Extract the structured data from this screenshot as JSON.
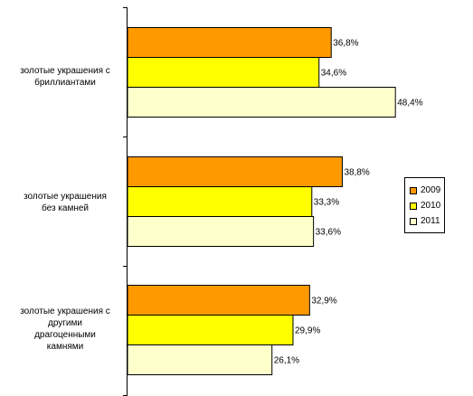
{
  "chart_data": {
    "type": "bar",
    "orientation": "horizontal",
    "categories": [
      "золотые украшения с\nбриллиантами",
      "золотые украшения\nбез камней",
      "золотые украшения с\nдругими\nдрагоценными\nкамнями"
    ],
    "series": [
      {
        "name": "2009",
        "values": [
          36.8,
          38.8,
          32.9
        ],
        "labels": [
          "36,8%",
          "38,8%",
          "32,9%"
        ],
        "color": "#FF9900"
      },
      {
        "name": "2010",
        "values": [
          34.6,
          33.3,
          29.9
        ],
        "labels": [
          "34,6%",
          "33,3%",
          "29,9%"
        ],
        "color": "#FFFF00"
      },
      {
        "name": "2011",
        "values": [
          48.4,
          33.6,
          26.1
        ],
        "labels": [
          "48,4%",
          "33,6%",
          "26,1%"
        ],
        "color": "#FFFFCC"
      }
    ],
    "xlim": [
      0,
      60
    ],
    "grid": false,
    "legend": "right"
  }
}
